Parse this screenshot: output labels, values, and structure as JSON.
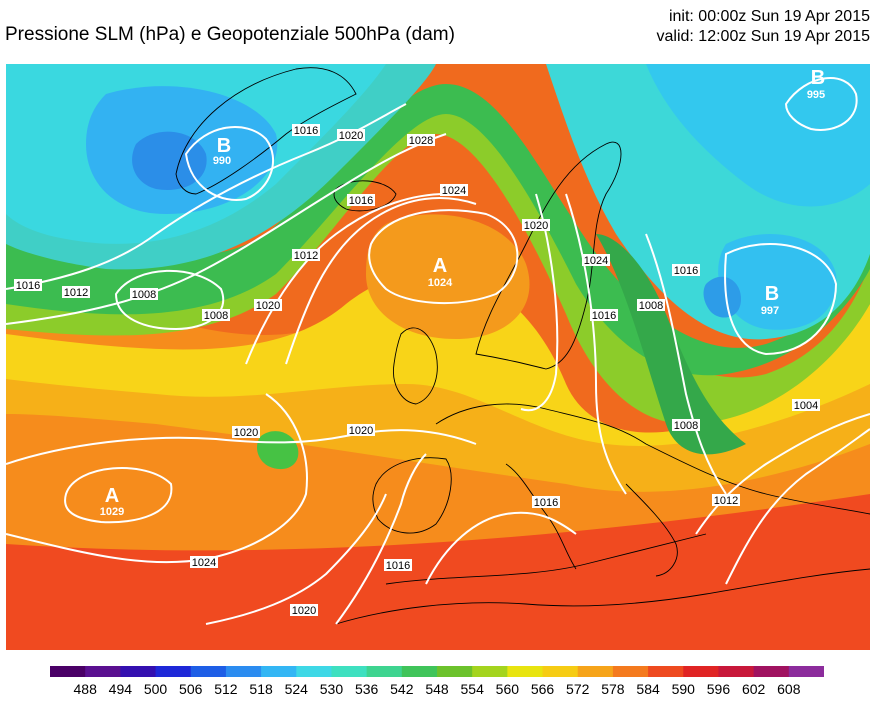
{
  "header": {
    "title": "Pressione SLM (hPa) e Geopotenziale 500hPa (dam)",
    "init": "init: 00:00z Sun 19 Apr 2015",
    "valid": "valid: 12:00z Sun 19 Apr 2015"
  },
  "pressure_centers": [
    {
      "letter": "B",
      "value": "990",
      "type": "low"
    },
    {
      "letter": "A",
      "value": "1024",
      "type": "high"
    },
    {
      "letter": "B",
      "value": "995",
      "type": "low"
    },
    {
      "letter": "B",
      "value": "997",
      "type": "low"
    },
    {
      "letter": "A",
      "value": "1029",
      "type": "high"
    }
  ],
  "isobar_labels": [
    "1016",
    "1012",
    "1008",
    "1008",
    "1016",
    "1020",
    "1028",
    "1024",
    "1016",
    "1012",
    "1020",
    "1020",
    "1024",
    "1016",
    "1016",
    "1008",
    "1004",
    "1008",
    "1020",
    "1020",
    "1016",
    "1012",
    "1016",
    "1024",
    "1020",
    "990",
    "997"
  ],
  "colorbar": {
    "ticks": [
      "488",
      "494",
      "500",
      "506",
      "512",
      "518",
      "524",
      "530",
      "536",
      "542",
      "548",
      "554",
      "560",
      "566",
      "572",
      "578",
      "584",
      "590",
      "596",
      "602",
      "608"
    ],
    "colors": [
      "#4a0066",
      "#5a1090",
      "#3410b0",
      "#1e28d8",
      "#1e5ee6",
      "#2b8cf0",
      "#33b6f4",
      "#3ed8e6",
      "#3ee0c0",
      "#3ed490",
      "#40c45a",
      "#6cc22c",
      "#a4d41e",
      "#e8e410",
      "#f6cc14",
      "#f6a41a",
      "#f47a1e",
      "#ee4a20",
      "#e02424",
      "#c8183a",
      "#a01260",
      "#8c2c9c"
    ]
  }
}
